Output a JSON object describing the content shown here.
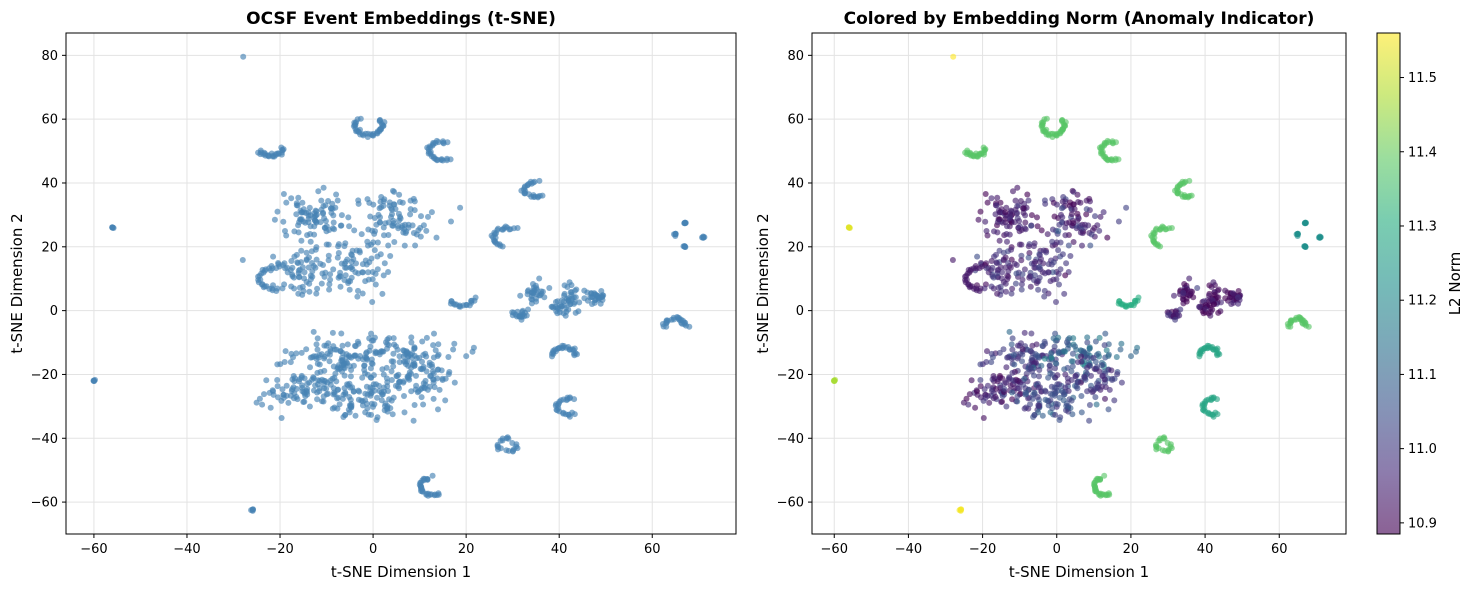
{
  "chart_data": [
    {
      "type": "scatter",
      "title": "OCSF Event Embeddings (t-SNE)",
      "xlabel": "t-SNE Dimension 1",
      "ylabel": "t-SNE Dimension 2",
      "xlim": [
        -66,
        78
      ],
      "ylim": [
        -70,
        87
      ],
      "xticks": [
        -60,
        -40,
        -20,
        0,
        20,
        40,
        60
      ],
      "yticks": [
        -60,
        -40,
        -20,
        0,
        20,
        40,
        60,
        80
      ],
      "grid": true,
      "marker_color": "#4682b4",
      "marker_opacity": 0.65
    },
    {
      "type": "scatter",
      "title": "Colored by Embedding Norm (Anomaly Indicator)",
      "xlabel": "t-SNE Dimension 1",
      "ylabel": "t-SNE Dimension 2",
      "xlim": [
        -66,
        78
      ],
      "ylim": [
        -70,
        87
      ],
      "xticks": [
        -60,
        -40,
        -20,
        0,
        20,
        40,
        60
      ],
      "yticks": [
        -60,
        -40,
        -20,
        0,
        20,
        40,
        60,
        80
      ],
      "grid": true,
      "colormap": "viridis",
      "colorbar": {
        "label": "L2 Norm",
        "min": 10.885,
        "max": 11.56,
        "ticks": [
          "10.9",
          "11.0",
          "11.1",
          "11.2",
          "11.3",
          "11.4",
          "11.5"
        ]
      }
    }
  ],
  "clusters": [
    {
      "type": "blob",
      "cx": -13,
      "cy": 29,
      "rx": 7,
      "ry": 7,
      "n": 90,
      "norm": 10.93
    },
    {
      "type": "blob",
      "cx": 5,
      "cy": 28,
      "rx": 8,
      "ry": 8,
      "n": 90,
      "norm": 10.95
    },
    {
      "type": "blob",
      "cx": -14,
      "cy": 12,
      "rx": 8,
      "ry": 6,
      "n": 80,
      "norm": 10.96
    },
    {
      "type": "blob",
      "cx": -3,
      "cy": 14,
      "rx": 6,
      "ry": 8,
      "n": 60,
      "norm": 10.98
    },
    {
      "type": "blob",
      "cx": -8,
      "cy": -14,
      "rx": 9,
      "ry": 6,
      "n": 90,
      "norm": 11.0
    },
    {
      "type": "blob",
      "cx": 6,
      "cy": -14,
      "rx": 9,
      "ry": 6,
      "n": 90,
      "norm": 11.1
    },
    {
      "type": "blob",
      "cx": -14,
      "cy": -25,
      "rx": 9,
      "ry": 6,
      "n": 90,
      "norm": 10.95
    },
    {
      "type": "blob",
      "cx": 0,
      "cy": -27,
      "rx": 9,
      "ry": 7,
      "n": 100,
      "norm": 11.05
    },
    {
      "type": "blob",
      "cx": 10,
      "cy": -21,
      "rx": 7,
      "ry": 6,
      "n": 70,
      "norm": 10.98
    },
    {
      "type": "blob",
      "cx": 35,
      "cy": 6,
      "rx": 2.5,
      "ry": 3.5,
      "n": 30,
      "norm": 10.9
    },
    {
      "type": "blob",
      "cx": 42,
      "cy": 5,
      "rx": 2,
      "ry": 3.5,
      "n": 25,
      "norm": 10.9
    },
    {
      "type": "blob",
      "cx": 48,
      "cy": 4.5,
      "rx": 2,
      "ry": 2,
      "n": 30,
      "norm": 10.9
    },
    {
      "type": "blob",
      "cx": 41,
      "cy": 1,
      "rx": 3,
      "ry": 2,
      "n": 25,
      "norm": 10.9
    },
    {
      "type": "blob",
      "cx": 32,
      "cy": -1,
      "rx": 2.5,
      "ry": 1.5,
      "n": 20,
      "norm": 10.95
    },
    {
      "type": "arc",
      "cx": -1,
      "cy": 58,
      "r": 3,
      "a0": 140,
      "a1": 400,
      "n": 40,
      "norm": 11.38
    },
    {
      "type": "arc",
      "cx": -22,
      "cy": 51,
      "r": 2.5,
      "a0": 200,
      "a1": 360,
      "n": 25,
      "norm": 11.38
    },
    {
      "type": "arc",
      "cx": 15,
      "cy": 50,
      "r": 3,
      "a0": 70,
      "a1": 300,
      "n": 30,
      "norm": 11.38
    },
    {
      "type": "arc",
      "cx": 35,
      "cy": 38,
      "r": 2.5,
      "a0": 90,
      "a1": 300,
      "n": 25,
      "norm": 11.38
    },
    {
      "type": "arc",
      "cx": 29,
      "cy": 23,
      "r": 3,
      "a0": 60,
      "a1": 250,
      "n": 25,
      "norm": 11.38
    },
    {
      "type": "arc",
      "cx": -21,
      "cy": 10,
      "r": 3.5,
      "a0": 80,
      "a1": 280,
      "n": 25,
      "norm": 10.93
    },
    {
      "type": "arc",
      "cx": 19,
      "cy": 4,
      "r": 2.5,
      "a0": 200,
      "a1": 360,
      "n": 18,
      "norm": 11.3
    },
    {
      "type": "arc",
      "cx": 65,
      "cy": -5,
      "r": 2.5,
      "a0": 0,
      "a1": 180,
      "n": 25,
      "norm": 11.38
    },
    {
      "type": "arc",
      "cx": 41,
      "cy": -14,
      "r": 2.5,
      "a0": 0,
      "a1": 180,
      "n": 25,
      "norm": 11.28
    },
    {
      "type": "arc",
      "cx": 42,
      "cy": -30,
      "r": 2.5,
      "a0": 60,
      "a1": 300,
      "n": 25,
      "norm": 11.28
    },
    {
      "type": "arc",
      "cx": 29,
      "cy": -42,
      "r": 2,
      "a0": 60,
      "a1": 360,
      "n": 20,
      "norm": 11.38
    },
    {
      "type": "arc",
      "cx": 13,
      "cy": -55,
      "r": 3,
      "a0": 100,
      "a1": 300,
      "n": 30,
      "norm": 11.38
    },
    {
      "type": "dots",
      "points": [
        [
          65,
          24
        ],
        [
          67,
          27.5
        ],
        [
          67,
          20
        ],
        [
          71,
          23
        ]
      ],
      "n": 6,
      "norm": 11.22
    },
    {
      "type": "dots",
      "points": [
        [
          -56,
          26
        ]
      ],
      "n": 5,
      "norm": 11.53
    },
    {
      "type": "dots",
      "points": [
        [
          -60,
          -22
        ]
      ],
      "n": 5,
      "norm": 11.47
    },
    {
      "type": "dots",
      "points": [
        [
          -26,
          -62.5
        ]
      ],
      "n": 5,
      "norm": 11.55
    },
    {
      "type": "dots",
      "points": [
        [
          -28,
          79.5
        ]
      ],
      "n": 1,
      "norm": 11.56
    }
  ]
}
